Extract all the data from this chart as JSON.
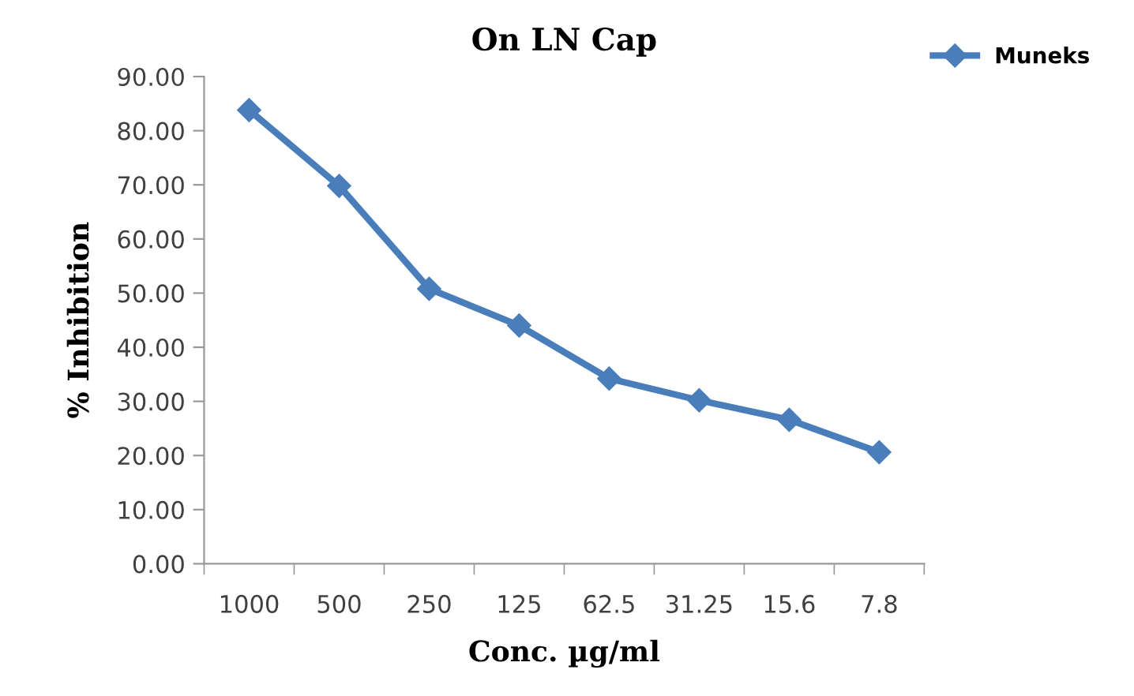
{
  "chart_data": {
    "type": "line",
    "title": "On LN Cap",
    "xlabel": "Conc. µg/ml",
    "ylabel": "% Inhibition",
    "categories": [
      "1000",
      "500",
      "250",
      "125",
      "62.5",
      "31.25",
      "15.6",
      "7.8"
    ],
    "series": [
      {
        "name": "Muneks",
        "color": "#4a7ebb",
        "values": [
          83.8,
          69.8,
          50.8,
          44.0,
          34.2,
          30.2,
          26.6,
          20.6
        ]
      }
    ],
    "ylim": [
      0,
      90
    ],
    "yticks": [
      {
        "value": 0,
        "label": "0.00"
      },
      {
        "value": 10,
        "label": "10.00"
      },
      {
        "value": 20,
        "label": "20.00"
      },
      {
        "value": 30,
        "label": "30.00"
      },
      {
        "value": 40,
        "label": "40.00"
      },
      {
        "value": 50,
        "label": "50.00"
      },
      {
        "value": 60,
        "label": "60.00"
      },
      {
        "value": 70,
        "label": "70.00"
      },
      {
        "value": 80,
        "label": "80.00"
      },
      {
        "value": 90,
        "label": "90.00"
      }
    ],
    "grid": false,
    "legend": "top right",
    "marker": "diamond",
    "line_style": "solid"
  }
}
